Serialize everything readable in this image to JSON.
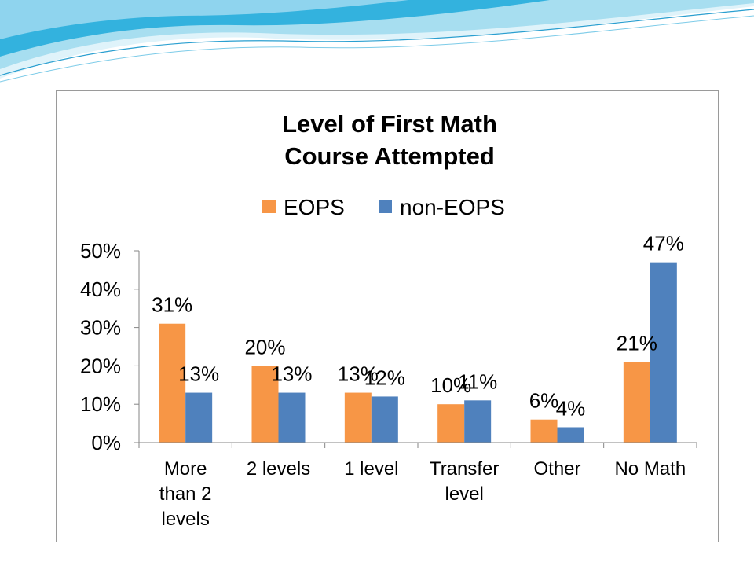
{
  "colors": {
    "eops": "#f79646",
    "non_eops": "#4f81bd",
    "axis": "#868686",
    "wave_dark": "#1ea7d6",
    "wave_light": "#a7def0"
  },
  "chart_data": {
    "type": "bar",
    "title_lines": [
      "Level of First Math",
      "Course Attempted"
    ],
    "categories": [
      [
        "More",
        "than 2",
        "levels"
      ],
      [
        "2 levels"
      ],
      [
        "1 level"
      ],
      [
        "Transfer",
        "level"
      ],
      [
        "Other"
      ],
      [
        "No Math"
      ]
    ],
    "series": [
      {
        "name": "EOPS",
        "values": [
          31,
          20,
          13,
          10,
          6,
          21
        ],
        "labels": [
          "31%",
          "20%",
          "13%",
          "10%",
          "6%",
          "21%"
        ]
      },
      {
        "name": "non-EOPS",
        "values": [
          13,
          13,
          12,
          11,
          4,
          47
        ],
        "labels": [
          "13%",
          "13%",
          "12%",
          "11%",
          "4%",
          "47%"
        ]
      }
    ],
    "ylim": [
      0,
      50
    ],
    "yticks": [
      0,
      10,
      20,
      30,
      40,
      50
    ],
    "ytick_labels": [
      "0%",
      "10%",
      "20%",
      "30%",
      "40%",
      "50%"
    ],
    "legend_position": "top",
    "grid": false
  }
}
